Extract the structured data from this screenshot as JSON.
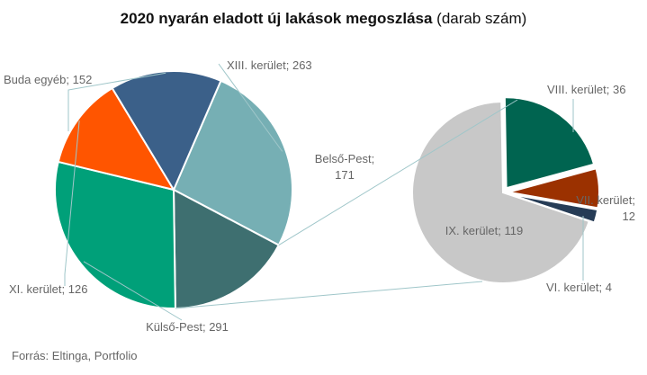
{
  "chart_data": {
    "type": "pie",
    "title_bold": "2020 nyarán eladott új lakások megoszlása",
    "title_rest": " (darab szám)",
    "source": "Forrás: Eltinga, Portfolio",
    "main": {
      "slices": [
        {
          "label": "XIII. kerület; 263",
          "value": 263,
          "color": "#76afb4"
        },
        {
          "label": "Belső-Pest;\n171",
          "value": 171,
          "color": "#3e6f70"
        },
        {
          "label": "Külső-Pest; 291",
          "value": 291,
          "color": "#00a079"
        },
        {
          "label": "XI. kerület; 126",
          "value": 126,
          "color": "#ff5500"
        },
        {
          "label": "Buda egyéb; 152",
          "value": 152,
          "color": "#3b6089"
        }
      ]
    },
    "detail": {
      "slices": [
        {
          "label": "VIII. kerület; 36",
          "value": 36,
          "color": "#006450"
        },
        {
          "label": "VII. kerület;\n12",
          "value": 12,
          "color": "#9b3100"
        },
        {
          "label": "VI. kerület; 4",
          "value": 4,
          "color": "#263c56"
        },
        {
          "label": "IX. kerület; 119",
          "value": 119,
          "color": "#c8c8c8"
        }
      ]
    }
  }
}
